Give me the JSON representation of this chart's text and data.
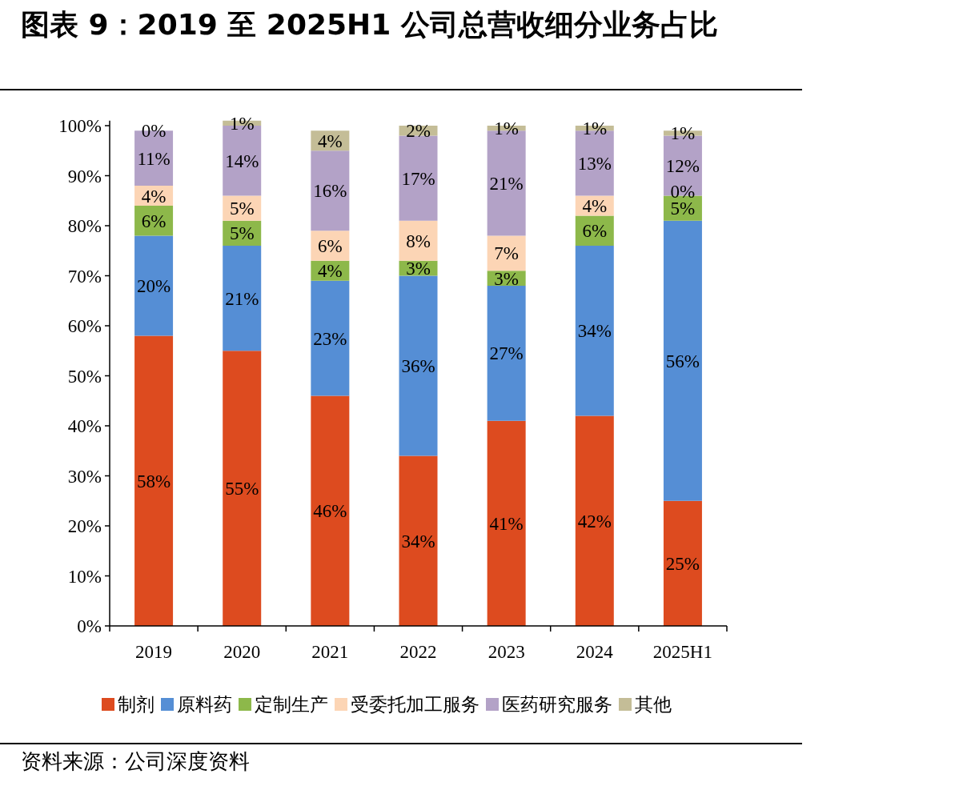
{
  "chart_data": {
    "type": "bar",
    "stacked": true,
    "title": "图表 9：2019 至 2025H1 公司总营收细分业务占比",
    "categories": [
      "2019",
      "2020",
      "2021",
      "2022",
      "2023",
      "2024",
      "2025H1"
    ],
    "series": [
      {
        "name": "制剂",
        "color": "#dd4b1f",
        "values": [
          58,
          55,
          46,
          34,
          41,
          42,
          25
        ],
        "value_labels": [
          "58%",
          "55%",
          "46%",
          "34%",
          "41%",
          "42%",
          "25%"
        ]
      },
      {
        "name": "原料药",
        "color": "#558ed5",
        "values": [
          20,
          21,
          23,
          36,
          27,
          34,
          56
        ],
        "value_labels": [
          "20%",
          "21%",
          "23%",
          "36%",
          "27%",
          "34%",
          "56%"
        ]
      },
      {
        "name": "定制生产",
        "color": "#8db84a",
        "values": [
          6,
          5,
          4,
          3,
          3,
          6,
          5
        ],
        "value_labels": [
          "6%",
          "5%",
          "4%",
          "3%",
          "3%",
          "6%",
          "5%"
        ]
      },
      {
        "name": "受委托加工服务",
        "color": "#fcd5b5",
        "values": [
          4,
          5,
          6,
          8,
          7,
          4,
          0
        ],
        "value_labels": [
          "4%",
          "5%",
          "6%",
          "8%",
          "7%",
          "4%",
          "0%"
        ]
      },
      {
        "name": "医药研究服务",
        "color": "#b3a2c7",
        "values": [
          11,
          14,
          16,
          17,
          21,
          13,
          12
        ],
        "value_labels": [
          "11%",
          "14%",
          "16%",
          "17%",
          "21%",
          "13%",
          "12%"
        ]
      },
      {
        "name": "其他",
        "color": "#c4bd97",
        "values": [
          0,
          1,
          4,
          2,
          1,
          1,
          1
        ],
        "value_labels": [
          "0%",
          "1%",
          "4%",
          "2%",
          "1%",
          "1%",
          "1%"
        ]
      }
    ],
    "ylim": [
      0,
      101
    ],
    "yticks": [
      {
        "value": 0,
        "label": "0%"
      },
      {
        "value": 10,
        "label": "10%"
      },
      {
        "value": 20,
        "label": "20%"
      },
      {
        "value": 30,
        "label": "30%"
      },
      {
        "value": 40,
        "label": "40%"
      },
      {
        "value": 50,
        "label": "50%"
      },
      {
        "value": 60,
        "label": "60%"
      },
      {
        "value": 70,
        "label": "70%"
      },
      {
        "value": 80,
        "label": "80%"
      },
      {
        "value": 90,
        "label": "90%"
      },
      {
        "value": 100,
        "label": "100%"
      }
    ],
    "legend": "bottom",
    "annotations": [
      "资料来源：公司深度资料"
    ]
  }
}
